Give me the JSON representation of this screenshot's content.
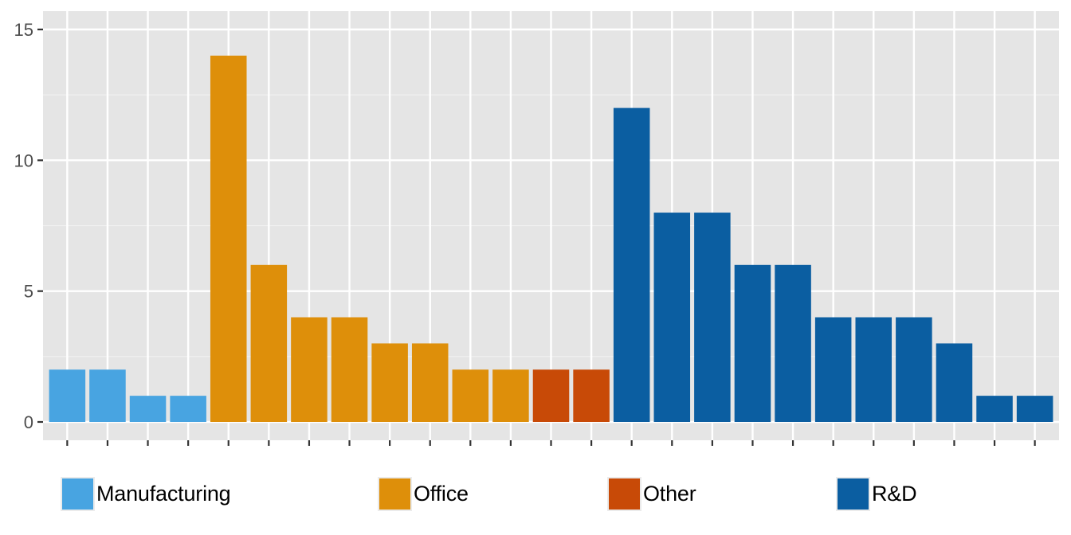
{
  "chart_data": {
    "type": "bar",
    "title": "",
    "xlabel": "",
    "ylabel": "",
    "ylim": [
      -0.7,
      15.7
    ],
    "y_ticks": [
      0,
      5,
      10,
      15
    ],
    "y_tick_labels": [
      "0",
      "5",
      "10",
      "15"
    ],
    "x_tick_labels_visible": false,
    "grid": true,
    "legend_position": "bottom",
    "categories": [
      "1",
      "2",
      "3",
      "4",
      "5",
      "6",
      "7",
      "8",
      "9",
      "10",
      "11",
      "12",
      "13",
      "14",
      "15",
      "16",
      "17",
      "18",
      "19",
      "20",
      "21",
      "22",
      "23",
      "24",
      "25"
    ],
    "values": [
      2,
      2,
      1,
      1,
      14,
      6,
      4,
      4,
      3,
      3,
      2,
      2,
      2,
      2,
      12,
      8,
      8,
      6,
      6,
      4,
      4,
      4,
      3,
      1,
      1
    ],
    "groups": [
      "Manufacturing",
      "Manufacturing",
      "Manufacturing",
      "Manufacturing",
      "Office",
      "Office",
      "Office",
      "Office",
      "Office",
      "Office",
      "Office",
      "Office",
      "Other",
      "Other",
      "R&D",
      "R&D",
      "R&D",
      "R&D",
      "R&D",
      "R&D",
      "R&D",
      "R&D",
      "R&D",
      "R&D",
      "R&D"
    ],
    "series": [
      {
        "name": "Manufacturing",
        "color": "#48a4e1",
        "values": [
          2,
          2,
          1,
          1
        ]
      },
      {
        "name": "Office",
        "color": "#de8f0a",
        "values": [
          14,
          6,
          4,
          4,
          3,
          3,
          2,
          2
        ]
      },
      {
        "name": "Other",
        "color": "#c84a07",
        "values": [
          2,
          2
        ]
      },
      {
        "name": "R&D",
        "color": "#0b5ea1",
        "values": [
          12,
          8,
          8,
          6,
          6,
          4,
          4,
          4,
          3,
          1,
          1
        ]
      }
    ]
  },
  "legend": {
    "items": [
      {
        "label": "Manufacturing",
        "color": "#48a4e1"
      },
      {
        "label": "Office",
        "color": "#de8f0a"
      },
      {
        "label": "Other",
        "color": "#c84a07"
      },
      {
        "label": "R&D",
        "color": "#0b5ea1"
      }
    ]
  },
  "colors": {
    "panel_background": "#e5e5e5",
    "grid_line": "#ffffff",
    "axis_text": "#4d4d4d",
    "tick": "#333333"
  }
}
